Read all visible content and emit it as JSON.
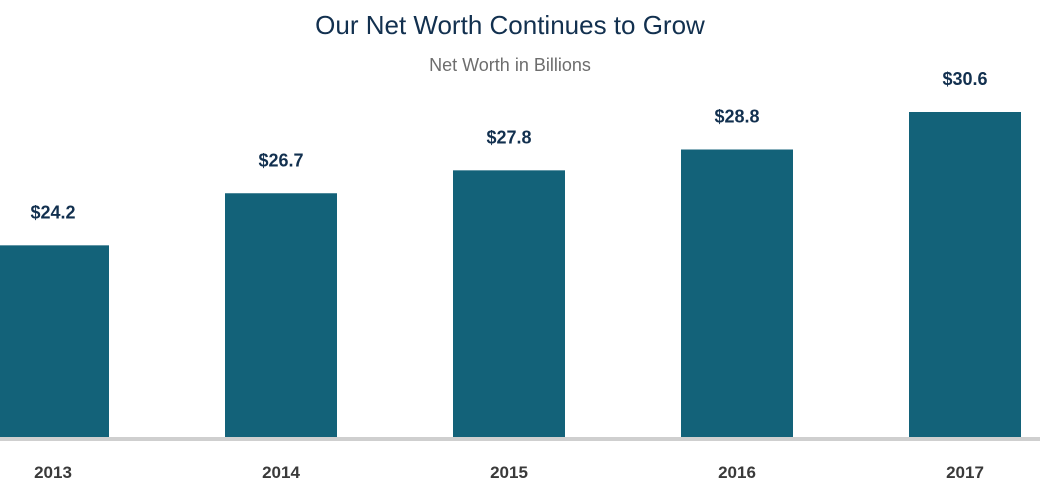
{
  "chart_data": {
    "type": "bar",
    "title": "Our Net Worth Continues to Grow",
    "subtitle": "Net Worth in Billions",
    "categories": [
      "2013",
      "2014",
      "2015",
      "2016",
      "2017"
    ],
    "values": [
      24.2,
      26.7,
      27.8,
      28.8,
      30.6
    ],
    "data_labels": [
      "$24.2",
      "$26.7",
      "$27.8",
      "$28.8",
      "$30.6"
    ],
    "xlabel": "",
    "ylabel": "",
    "ylim": [
      15,
      31.5
    ],
    "grid": false,
    "legend": "none",
    "colors": {
      "bar": "#136279",
      "axis": "#cfcfcf",
      "title": "#12304f",
      "subtitle": "#6d6d6d",
      "tick": "#3a3a3a"
    }
  }
}
